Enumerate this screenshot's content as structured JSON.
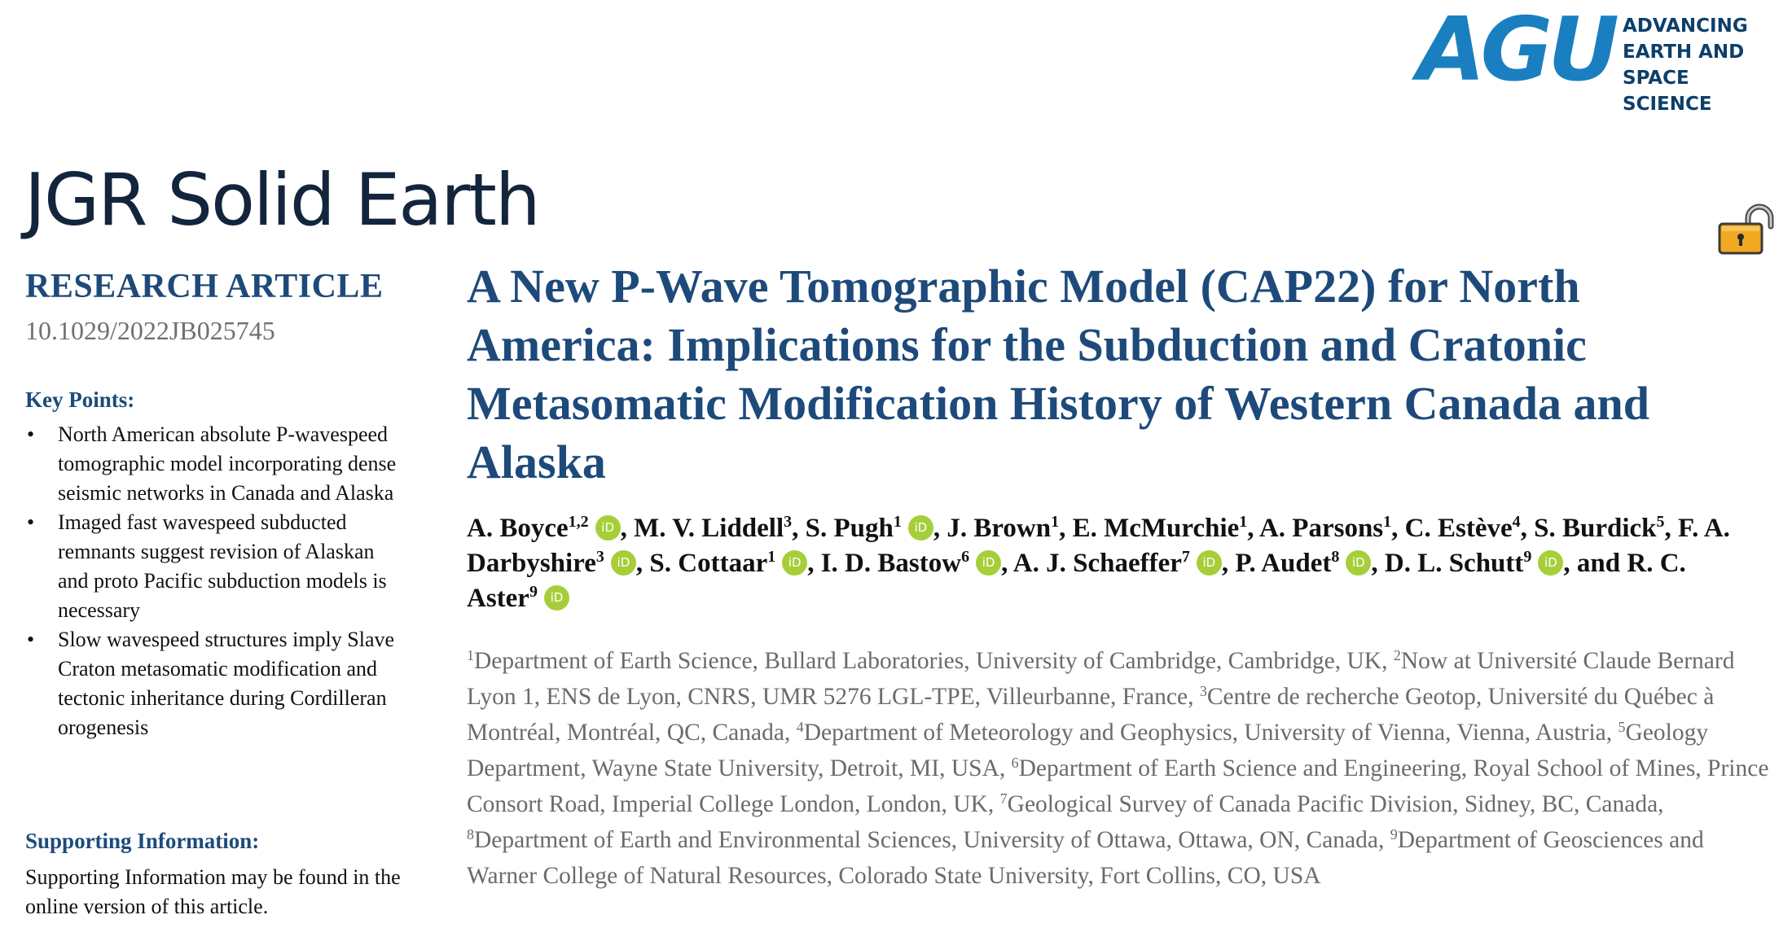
{
  "logo": {
    "mark": "AGU",
    "tagline": "ADVANCING\nEARTH AND\nSPACE SCIENCE",
    "color": "#1a7fc1"
  },
  "journal": {
    "name": "JGR Solid Earth"
  },
  "open_access_icon": "open-lock-icon",
  "sidebar": {
    "article_type": "RESEARCH ARTICLE",
    "doi": "10.1029/2022JB025745",
    "key_points_heading": "Key Points:",
    "key_points": [
      "North American absolute P-wavespeed tomographic model incorporating dense seismic networks in Canada and Alaska",
      "Imaged fast wavespeed subducted remnants suggest revision of Alaskan and proto Pacific subduction models is necessary",
      "Slow wavespeed structures imply Slave Craton metasomatic modification and tectonic inheritance during Cordilleran orogenesis"
    ],
    "supporting_heading": "Supporting Information:",
    "supporting_text": "Supporting Information may be found in the online version of this article."
  },
  "article": {
    "title": "A New P-Wave Tomographic Model (CAP22) for North America: Implications for the Subduction and Cratonic Metasomatic Modification History of Western Canada and Alaska",
    "orcid_label": "iD",
    "authors": [
      {
        "name": "A. Boyce",
        "sup": "1,2",
        "orcid": true,
        "sep": ", "
      },
      {
        "name": "M. V. Liddell",
        "sup": "3",
        "orcid": false,
        "sep": ", "
      },
      {
        "name": "S. Pugh",
        "sup": "1",
        "orcid": true,
        "sep": ", "
      },
      {
        "name": "J. Brown",
        "sup": "1",
        "orcid": false,
        "sep": ", "
      },
      {
        "name": "E. McMurchie",
        "sup": "1",
        "orcid": false,
        "sep": ", "
      },
      {
        "name": "A. Parsons",
        "sup": "1",
        "orcid": false,
        "sep": ", "
      },
      {
        "name": "C. Estève",
        "sup": "4",
        "orcid": false,
        "sep": ", "
      },
      {
        "name": "S. Burdick",
        "sup": "5",
        "orcid": false,
        "sep": ", "
      },
      {
        "name": "F. A. Darbyshire",
        "sup": "3",
        "orcid": true,
        "sep": ", "
      },
      {
        "name": "S. Cottaar",
        "sup": "1",
        "orcid": true,
        "sep": ", "
      },
      {
        "name": "I. D. Bastow",
        "sup": "6",
        "orcid": true,
        "sep": ", "
      },
      {
        "name": "A. J. Schaeffer",
        "sup": "7",
        "orcid": true,
        "sep": ", "
      },
      {
        "name": "P. Audet",
        "sup": "8",
        "orcid": true,
        "sep": ", "
      },
      {
        "name": "D. L. Schutt",
        "sup": "9",
        "orcid": true,
        "sep": ", and "
      },
      {
        "name": "R. C. Aster",
        "sup": "9",
        "orcid": true,
        "sep": ""
      }
    ],
    "affiliations": [
      {
        "sup": "1",
        "text": "Department of Earth Science, Bullard Laboratories, University of Cambridge, Cambridge, UK, "
      },
      {
        "sup": "2",
        "text": "Now at Université Claude Bernard Lyon 1, ENS de Lyon, CNRS, UMR 5276 LGL-TPE, Villeurbanne, France, "
      },
      {
        "sup": "3",
        "text": "Centre de recherche Geotop, Université du Québec à Montréal, Montréal, QC, Canada, "
      },
      {
        "sup": "4",
        "text": "Department of Meteorology and Geophysics, University of Vienna, Vienna, Austria, "
      },
      {
        "sup": "5",
        "text": "Geology Department, Wayne State University, Detroit, MI, USA, "
      },
      {
        "sup": "6",
        "text": "Department of Earth Science and Engineering, Royal School of Mines, Prince Consort Road, Imperial College London, London, UK, "
      },
      {
        "sup": "7",
        "text": "Geological Survey of Canada Pacific Division, Sidney, BC, Canada, "
      },
      {
        "sup": "8",
        "text": "Department of Earth and Environmental Sciences, University of Ottawa, Ottawa, ON, Canada, "
      },
      {
        "sup": "9",
        "text": "Department of Geosciences and Warner College of Natural Resources, Colorado State University, Fort Collins, CO, USA"
      }
    ]
  }
}
